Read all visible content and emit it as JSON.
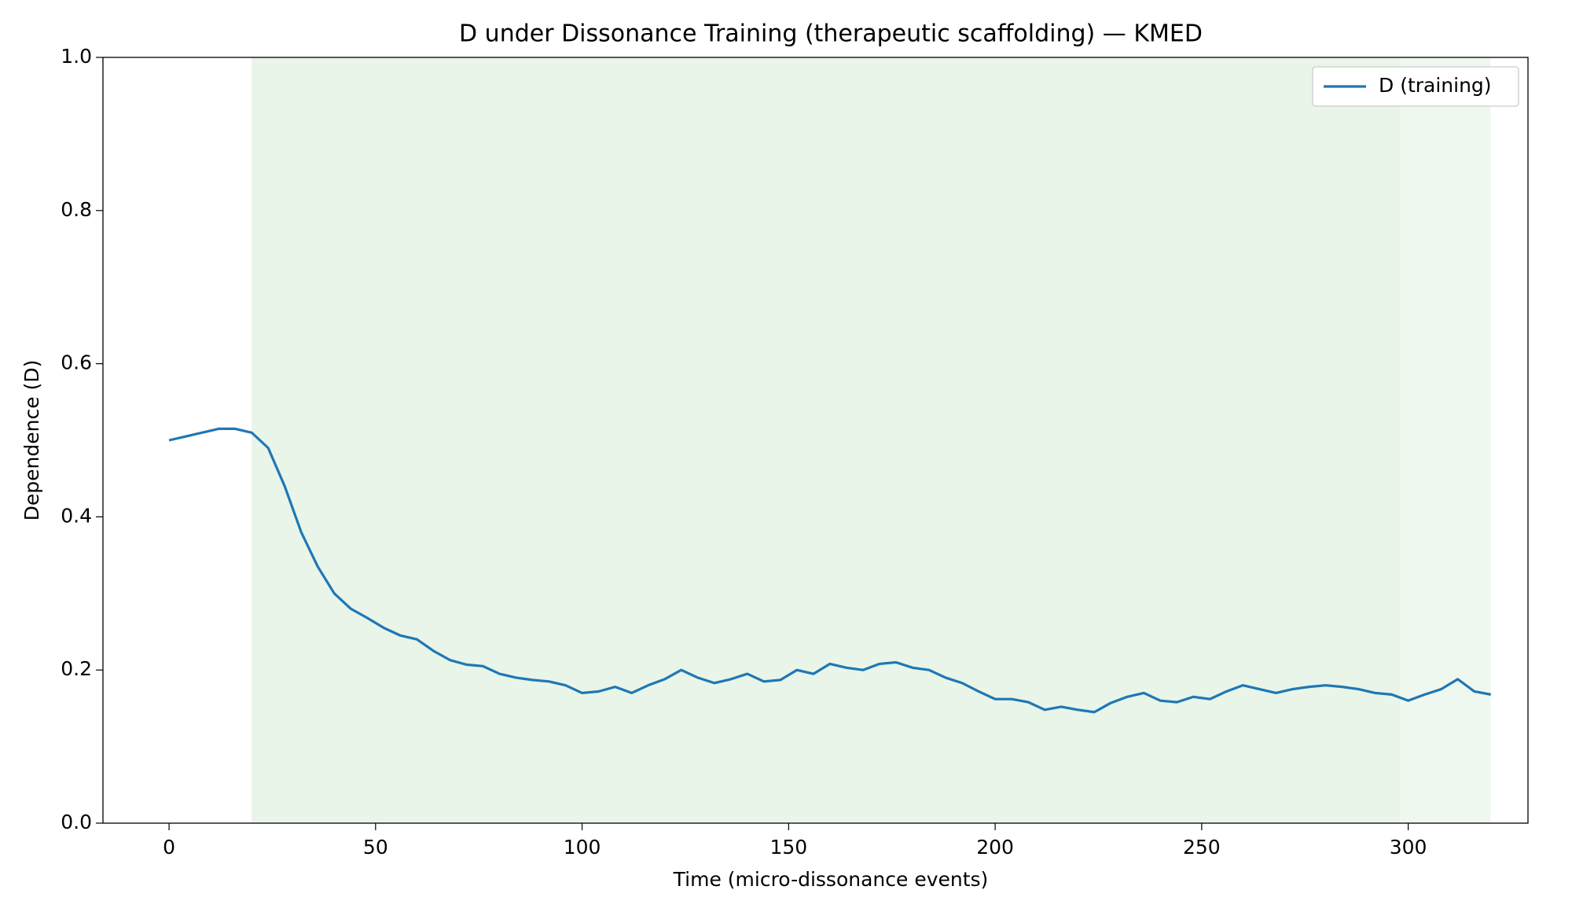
{
  "chart_data": {
    "type": "line",
    "title": "D under Dissonance Training (therapeutic scaffolding) — KMED",
    "xlabel": "Time (micro-dissonance events)",
    "ylabel": "Dependence (D)",
    "x": [
      0,
      4,
      8,
      12,
      16,
      20,
      24,
      28,
      32,
      36,
      40,
      44,
      48,
      52,
      56,
      60,
      64,
      68,
      72,
      76,
      80,
      84,
      88,
      92,
      96,
      100,
      104,
      108,
      112,
      116,
      120,
      124,
      128,
      132,
      136,
      140,
      144,
      148,
      152,
      156,
      160,
      164,
      168,
      172,
      176,
      180,
      184,
      188,
      192,
      196,
      200,
      204,
      208,
      212,
      216,
      220,
      224,
      228,
      232,
      236,
      240,
      244,
      248,
      252,
      256,
      260,
      264,
      268,
      272,
      276,
      280,
      284,
      288,
      292,
      296,
      300,
      304,
      308,
      312,
      316,
      320
    ],
    "series": [
      {
        "name": "D (training)",
        "color": "#1f77b4",
        "values": [
          0.5,
          0.505,
          0.51,
          0.515,
          0.515,
          0.51,
          0.49,
          0.44,
          0.38,
          0.335,
          0.3,
          0.28,
          0.268,
          0.255,
          0.245,
          0.24,
          0.225,
          0.213,
          0.207,
          0.205,
          0.195,
          0.19,
          0.187,
          0.185,
          0.18,
          0.17,
          0.172,
          0.178,
          0.17,
          0.18,
          0.188,
          0.2,
          0.19,
          0.183,
          0.188,
          0.195,
          0.185,
          0.187,
          0.2,
          0.195,
          0.208,
          0.203,
          0.2,
          0.208,
          0.21,
          0.203,
          0.2,
          0.19,
          0.183,
          0.172,
          0.162,
          0.162,
          0.158,
          0.148,
          0.152,
          0.148,
          0.145,
          0.157,
          0.165,
          0.17,
          0.16,
          0.158,
          0.165,
          0.162,
          0.172,
          0.18,
          0.175,
          0.17,
          0.175,
          0.178,
          0.18,
          0.178,
          0.175,
          0.17,
          0.168,
          0.16,
          0.168,
          0.175,
          0.188,
          0.172,
          0.168
        ]
      }
    ],
    "spans": [
      {
        "x": [
          20,
          298
        ],
        "color": "#e8f5e8"
      },
      {
        "x": [
          298,
          320
        ],
        "color": "#eff8ef"
      }
    ],
    "xlim": [
      -16,
      329
    ],
    "ylim": [
      0,
      1
    ],
    "xticks": [
      0,
      50,
      100,
      150,
      200,
      250,
      300
    ],
    "yticks": [
      {
        "value": 0,
        "label": "0.0"
      },
      {
        "value": 0.2,
        "label": "0.2"
      },
      {
        "value": 0.4,
        "label": "0.4"
      },
      {
        "value": 0.6,
        "label": "0.6"
      },
      {
        "value": 0.8,
        "label": "0.8"
      },
      {
        "value": 1,
        "label": "1.0"
      }
    ],
    "legend": "upper right"
  }
}
